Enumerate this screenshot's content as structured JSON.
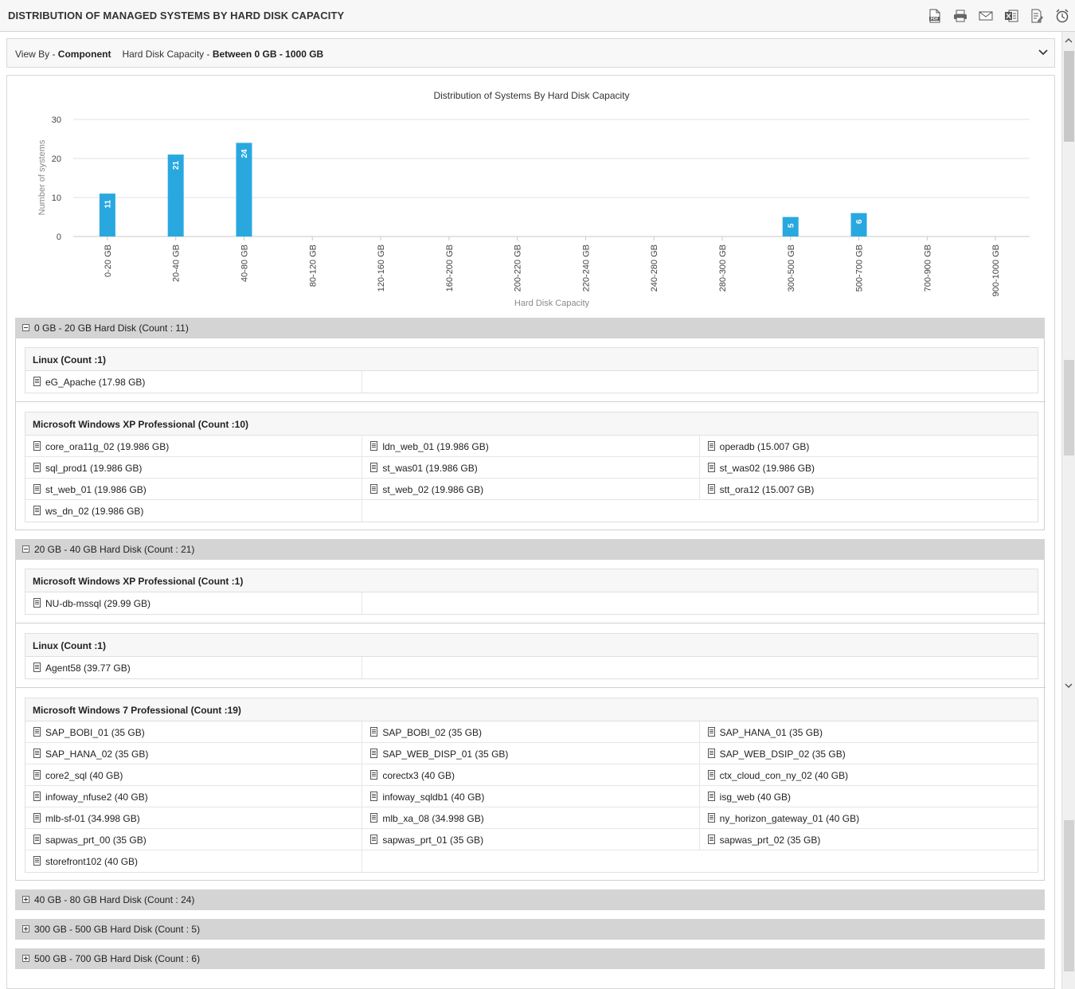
{
  "window": {
    "title": "DISTRIBUTION OF MANAGED SYSTEMS BY HARD DISK CAPACITY",
    "tools": [
      "pdf-icon",
      "print-icon",
      "mail-icon",
      "excel-icon",
      "report-icon",
      "alarm-clock-icon"
    ]
  },
  "filter": {
    "view_by_label": "View By - ",
    "view_by_value": "Component",
    "capacity_label": "Hard Disk Capacity - ",
    "capacity_value": "Between 0 GB - 1000 GB"
  },
  "chart_data": {
    "type": "bar",
    "title": "Distribution of Systems By Hard Disk Capacity",
    "xlabel": "Hard Disk Capacity",
    "ylabel": "Number of systems",
    "categories": [
      "0-20 GB",
      "20-40 GB",
      "40-80 GB",
      "80-120 GB",
      "120-160 GB",
      "160-200 GB",
      "200-220 GB",
      "220-240 GB",
      "240-280 GB",
      "280-300 GB",
      "300-500 GB",
      "500-700 GB",
      "700-900 GB",
      "900-1000 GB"
    ],
    "values": [
      11,
      21,
      24,
      0,
      0,
      0,
      0,
      0,
      0,
      0,
      5,
      6,
      0,
      0
    ],
    "ylim": [
      0,
      30
    ],
    "yticks": [
      0,
      10,
      20,
      30
    ],
    "bar_color": "#29a8e0",
    "grid": true,
    "data_labels": true
  },
  "groups": [
    {
      "label": "0 GB - 20 GB Hard Disk (Count : 11)",
      "expanded": true,
      "os": [
        {
          "title": "Linux (Count :1)",
          "items": [
            "eG_Apache (17.98 GB)"
          ]
        },
        {
          "title": "Microsoft Windows XP Professional (Count :10)",
          "items": [
            "core_ora11g_02 (19.986 GB)",
            "ldn_web_01 (19.986 GB)",
            "operadb (15.007 GB)",
            "sql_prod1 (19.986 GB)",
            "st_was01 (19.986 GB)",
            "st_was02 (19.986 GB)",
            "st_web_01 (19.986 GB)",
            "st_web_02 (19.986 GB)",
            "stt_ora12 (15.007 GB)",
            "ws_dn_02 (19.986 GB)"
          ]
        }
      ]
    },
    {
      "label": "20 GB - 40 GB Hard Disk (Count : 21)",
      "expanded": true,
      "os": [
        {
          "title": "Microsoft Windows XP Professional (Count :1)",
          "items": [
            "NU-db-mssql (29.99 GB)"
          ]
        },
        {
          "title": "Linux (Count :1)",
          "items": [
            "Agent58 (39.77 GB)"
          ]
        },
        {
          "title": "Microsoft Windows 7 Professional (Count :19)",
          "items": [
            "SAP_BOBI_01 (35 GB)",
            "SAP_BOBI_02 (35 GB)",
            "SAP_HANA_01 (35 GB)",
            "SAP_HANA_02 (35 GB)",
            "SAP_WEB_DISP_01 (35 GB)",
            "SAP_WEB_DSIP_02 (35 GB)",
            "core2_sql (40 GB)",
            "corectx3 (40 GB)",
            "ctx_cloud_con_ny_02 (40 GB)",
            "infoway_nfuse2 (40 GB)",
            "infoway_sqldb1 (40 GB)",
            "isg_web (40 GB)",
            "mlb-sf-01 (34.998 GB)",
            "mlb_xa_08 (34.998 GB)",
            "ny_horizon_gateway_01 (40 GB)",
            "sapwas_prt_00 (35 GB)",
            "sapwas_prt_01 (35 GB)",
            "sapwas_prt_02 (35 GB)",
            "storefront102 (40 GB)"
          ]
        }
      ]
    },
    {
      "label": "40 GB - 80 GB Hard Disk (Count : 24)",
      "expanded": false,
      "os": []
    },
    {
      "label": "300 GB - 500 GB Hard Disk (Count : 5)",
      "expanded": false,
      "os": []
    },
    {
      "label": "500 GB - 700 GB Hard Disk (Count : 6)",
      "expanded": false,
      "os": []
    }
  ]
}
